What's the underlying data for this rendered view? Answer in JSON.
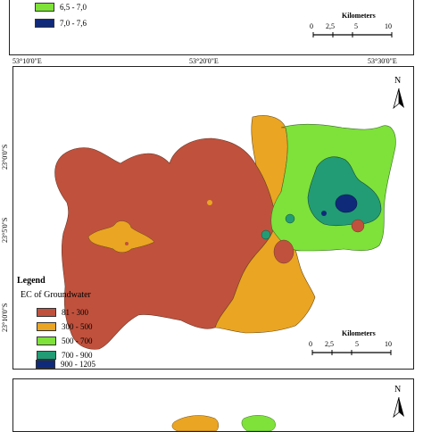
{
  "top_panel": {
    "legend_items": [
      {
        "label": "6,5 - 7,0",
        "color": "#7ee23a"
      },
      {
        "label": "7,0 - 7,6",
        "color": "#102a7a"
      }
    ],
    "scale": {
      "title": "Kilometers",
      "ticks": [
        "0",
        "2,5",
        "5",
        "10"
      ]
    },
    "bottom_coords": [
      "53°10'0\"E",
      "53°20'0\"E",
      "53°30'0\"E"
    ]
  },
  "main_panel": {
    "legend_title": "Legend",
    "legend_subtitle": "EC of Groundwater",
    "legend_items": [
      {
        "label": "81 - 300",
        "color": "#c0513d"
      },
      {
        "label": "300 - 500",
        "color": "#eaa522"
      },
      {
        "label": "500 - 700",
        "color": "#7ee23a"
      },
      {
        "label": "700 - 900",
        "color": "#229c74"
      },
      {
        "label": "900 - 1205",
        "color": "#102a7a"
      }
    ],
    "lat_labels": [
      "23°0'0\"S",
      "23°5'0\"S",
      "23°10'0\"S"
    ],
    "north_label": "N",
    "scale": {
      "title": "Kilometers",
      "ticks": [
        "0",
        "2,5",
        "5",
        "10"
      ]
    }
  },
  "bottom_panel": {
    "north_label": "N"
  }
}
